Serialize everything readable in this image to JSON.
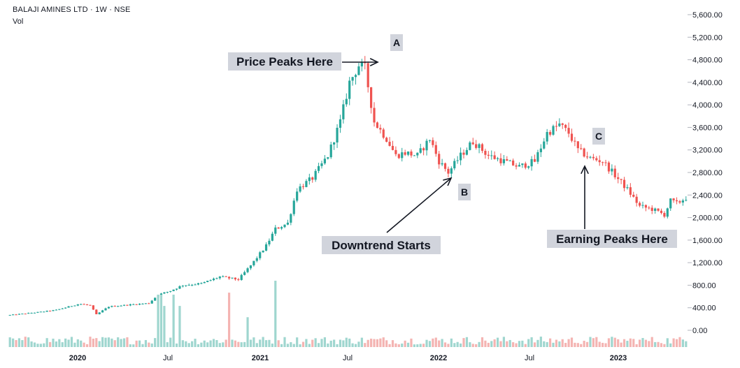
{
  "header": {
    "symbol_line": "BALAJI AMINES LTD · 1W · NSE",
    "volume_label": "Vol"
  },
  "colors": {
    "up": "#26a69a",
    "down": "#ef5350",
    "vol_up": "#9fd6cf",
    "vol_down": "#f4b4b2",
    "label_bg": "#d1d4dc",
    "axis_text": "#131722"
  },
  "chart_data": {
    "type": "candlestick",
    "interval": "1W",
    "yaxis": {
      "ticks": [
        "5,600.00",
        "5,200.00",
        "4,800.00",
        "4,400.00",
        "4,000.00",
        "3,600.00",
        "3,200.00",
        "2,800.00",
        "2,400.00",
        "2,000.00",
        "1,600.00",
        "1,200.00",
        "800.00",
        "400.00",
        "0.00"
      ],
      "range": [
        0,
        5600
      ],
      "side": "right"
    },
    "xaxis": {
      "labels": [
        "2020",
        "Jul",
        "2021",
        "Jul",
        "2022",
        "Jul",
        "2023"
      ],
      "label_bold": [
        "2020",
        "2021",
        "2022",
        "2023"
      ]
    },
    "price_path": [
      [
        0,
        270
      ],
      [
        18,
        320
      ],
      [
        30,
        360
      ],
      [
        45,
        470
      ],
      [
        52,
        440
      ],
      [
        56,
        280
      ],
      [
        64,
        420
      ],
      [
        80,
        460
      ],
      [
        90,
        480
      ],
      [
        96,
        630
      ],
      [
        104,
        700
      ],
      [
        112,
        800
      ],
      [
        124,
        830
      ],
      [
        136,
        950
      ],
      [
        148,
        900
      ],
      [
        156,
        1150
      ],
      [
        166,
        1500
      ],
      [
        172,
        1800
      ],
      [
        180,
        1900
      ],
      [
        186,
        2500
      ],
      [
        196,
        2700
      ],
      [
        206,
        3100
      ],
      [
        214,
        3700
      ],
      [
        220,
        4400
      ],
      [
        226,
        4700
      ],
      [
        230,
        4650
      ],
      [
        236,
        3700
      ],
      [
        244,
        3400
      ],
      [
        250,
        3100
      ],
      [
        256,
        3150
      ],
      [
        264,
        3100
      ],
      [
        272,
        3400
      ],
      [
        278,
        3000
      ],
      [
        284,
        2800
      ],
      [
        292,
        3100
      ],
      [
        300,
        3350
      ],
      [
        310,
        3100
      ],
      [
        320,
        3000
      ],
      [
        330,
        2900
      ],
      [
        340,
        3000
      ],
      [
        348,
        3500
      ],
      [
        356,
        3650
      ],
      [
        362,
        3500
      ],
      [
        368,
        3200
      ],
      [
        376,
        3050
      ],
      [
        384,
        3000
      ],
      [
        392,
        2750
      ],
      [
        400,
        2500
      ],
      [
        408,
        2200
      ],
      [
        416,
        2150
      ],
      [
        424,
        2050
      ],
      [
        428,
        2300
      ],
      [
        432,
        2250
      ],
      [
        438,
        2350
      ]
    ],
    "volume_spikes": [
      {
        "i": 172,
        "v": 1.0
      },
      {
        "i": 96,
        "v": 0.79
      },
      {
        "i": 98,
        "v": 0.79
      },
      {
        "i": 106,
        "v": 0.79
      },
      {
        "i": 142,
        "v": 0.82
      },
      {
        "i": 100,
        "v": 0.62
      },
      {
        "i": 110,
        "v": 0.62
      },
      {
        "i": 154,
        "v": 0.45
      }
    ],
    "annotations": [
      {
        "id": "A",
        "text": "A"
      },
      {
        "id": "B",
        "text": "B"
      },
      {
        "id": "C",
        "text": "C"
      },
      {
        "id": "price-peak",
        "text": "Price Peaks Here"
      },
      {
        "id": "downtrend",
        "text": "Downtrend Starts"
      },
      {
        "id": "earning-peak",
        "text": "Earning Peaks Here"
      }
    ]
  }
}
